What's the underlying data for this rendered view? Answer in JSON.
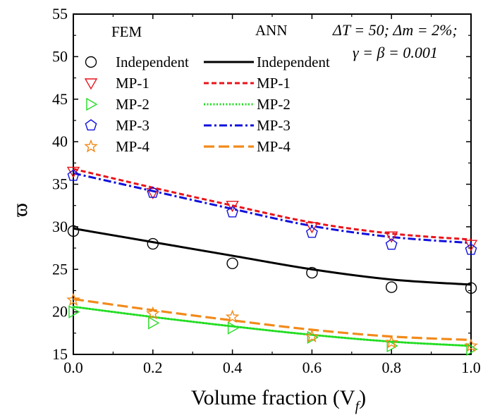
{
  "chart_data": {
    "type": "line",
    "xlabel": "Volume fraction (V",
    "xlabel_sub": "f",
    "xlabel_close": ")",
    "ylabel": "ϖ",
    "xlim": [
      0.0,
      1.0
    ],
    "ylim": [
      15,
      55
    ],
    "x_ticks": [
      "0.0",
      "0.2",
      "0.4",
      "0.6",
      "0.8",
      "1.0"
    ],
    "y_ticks": [
      "15",
      "20",
      "25",
      "30",
      "35",
      "40",
      "45",
      "50",
      "55"
    ],
    "legend_headers": {
      "fem": "FEM",
      "ann": "ANN"
    },
    "annotation": {
      "line1": "ΔT = 50; Δm = 2%;",
      "line2": "γ = β = 0.001"
    },
    "fem_x": [
      0.0,
      0.2,
      0.4,
      0.6,
      0.8,
      1.0
    ],
    "series": [
      {
        "name": "Independent",
        "color": "#000000",
        "marker": "circle",
        "dash": "solid",
        "fem_values": [
          29.5,
          28.0,
          25.7,
          24.6,
          22.9,
          22.8
        ],
        "ann_x": [
          0.0,
          0.2,
          0.4,
          0.6,
          0.8,
          1.0
        ],
        "ann_values": [
          29.8,
          28.2,
          26.6,
          25.0,
          23.8,
          23.2
        ]
      },
      {
        "name": "MP-1",
        "color": "#e8141b",
        "marker": "triangle-down",
        "dash": "short-dash",
        "fem_values": [
          36.5,
          34.0,
          32.5,
          30.0,
          28.9,
          27.9
        ],
        "ann_x": [
          0.0,
          0.2,
          0.4,
          0.6,
          0.8,
          1.0
        ],
        "ann_values": [
          36.8,
          34.6,
          32.5,
          30.5,
          29.2,
          28.5
        ]
      },
      {
        "name": "MP-2",
        "color": "#22dd22",
        "marker": "triangle-right",
        "dash": "dotted",
        "fem_values": [
          20.0,
          18.7,
          18.1,
          17.0,
          16.0,
          15.6
        ],
        "ann_x": [
          0.0,
          0.2,
          0.4,
          0.6,
          0.8,
          1.0
        ],
        "ann_values": [
          20.6,
          19.4,
          18.3,
          17.3,
          16.5,
          16.0
        ]
      },
      {
        "name": "MP-3",
        "color": "#1010dd",
        "marker": "pentagon",
        "dash": "dash-dot",
        "fem_values": [
          36.0,
          34.0,
          31.7,
          29.3,
          27.9,
          27.3
        ],
        "ann_x": [
          0.0,
          0.2,
          0.4,
          0.6,
          0.8,
          1.0
        ],
        "ann_values": [
          36.3,
          34.2,
          32.1,
          30.1,
          28.8,
          28.1
        ]
      },
      {
        "name": "MP-4",
        "color": "#f28a1a",
        "marker": "star",
        "dash": "long-dash",
        "fem_values": [
          21.4,
          19.8,
          19.4,
          17.1,
          16.4,
          16.0
        ],
        "ann_x": [
          0.0,
          0.2,
          0.4,
          0.6,
          0.8,
          1.0
        ],
        "ann_values": [
          21.5,
          20.2,
          19.0,
          17.9,
          17.1,
          16.7
        ]
      }
    ]
  }
}
